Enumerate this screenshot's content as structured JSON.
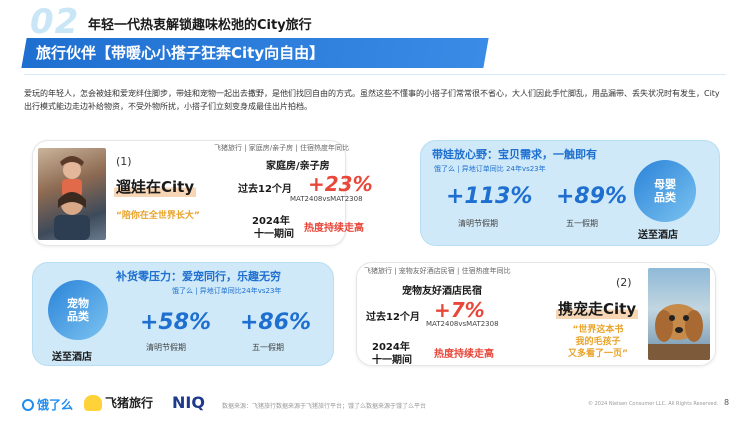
{
  "header": {
    "section_number": "02",
    "title": "年轻一代热衷解锁趣味松弛的City旅行"
  },
  "banner": {
    "title": "旅行伙伴【带暖心小搭子狂奔City向自由】"
  },
  "intro": "爱玩的年轻人，怎会被娃和爱宠绊住脚步，带娃和宠物一起出去撒野，是他们找回自由的方式。虽然这些不懂事的小搭子们常常很不省心，大人们因此手忙脚乱，用品漏带、丢失状况时有发生，City出行模式能边走边补给物资，不受外物所扰，小搭子们立刻变身成最佳出片拍档。",
  "card_family": {
    "number": "(1)",
    "title": "遛娃在City",
    "quote": "“陪你在全世界长大”",
    "source": "飞猪旅行 | 家庭房/亲子房 | 住宿热度年同比",
    "room_type": "家庭房/亲子房",
    "period": "过去12个月",
    "growth": "+23%",
    "compare": "MAT2408vsMAT2308",
    "year": "2024年",
    "holiday": "十一期间",
    "trend": "热度持续走高"
  },
  "card_baby": {
    "title": "带娃放心野：宝贝需求，一触即有",
    "source": "饿了么 | 异地订单同比 24年vs23年",
    "stat1_value": "+113%",
    "stat1_label": "清明节假期",
    "stat2_value": "+89%",
    "stat2_label": "五一假期",
    "badge": "母婴\n品类",
    "badge_line1": "母婴",
    "badge_line2": "品类",
    "delivery": "送至酒店"
  },
  "card_pet_supply": {
    "title": "补货零压力：爱宠同行，乐趣无穷",
    "source": "饿了么 | 异地订单同比24年vs23年",
    "badge_line1": "宠物",
    "badge_line2": "品类",
    "delivery": "送至酒店",
    "stat1_value": "+58%",
    "stat1_label": "清明节假期",
    "stat2_value": "+86%",
    "stat2_label": "五一假期"
  },
  "card_pet": {
    "number": "(2)",
    "title": "携宠走City",
    "quote": "“世界这本书\n我的毛孩子\n又多看了一页”",
    "quote_l1": "“世界这本书",
    "quote_l2": "我的毛孩子",
    "quote_l3": "又多看了一页”",
    "source": "飞猪旅行 | 宠物友好酒店民宿 | 住宿热度年同比",
    "hotel_type": "宠物友好酒店民宿",
    "period": "过去12个月",
    "growth": "+7%",
    "compare": "MAT2408vsMAT2308",
    "year": "2024年",
    "holiday": "十一期间",
    "trend": "热度持续走高"
  },
  "footer": {
    "logo_eleme": "饿了么",
    "logo_fliggy": "飞猪旅行",
    "logo_niq": "NIQ",
    "data_source": "数据来源：飞猪旅行数据来源于飞猪旅行平台；饿了么数据来源于饿了么平台",
    "copyright": "© 2024 Nielsen Consumer LLC. All Rights Reserved.",
    "page": "8"
  },
  "colors": {
    "brand_blue": "#1e6fd0",
    "accent_red": "#e8483a",
    "accent_orange": "#e8a32a",
    "light_blue": "#cfe9f8"
  }
}
